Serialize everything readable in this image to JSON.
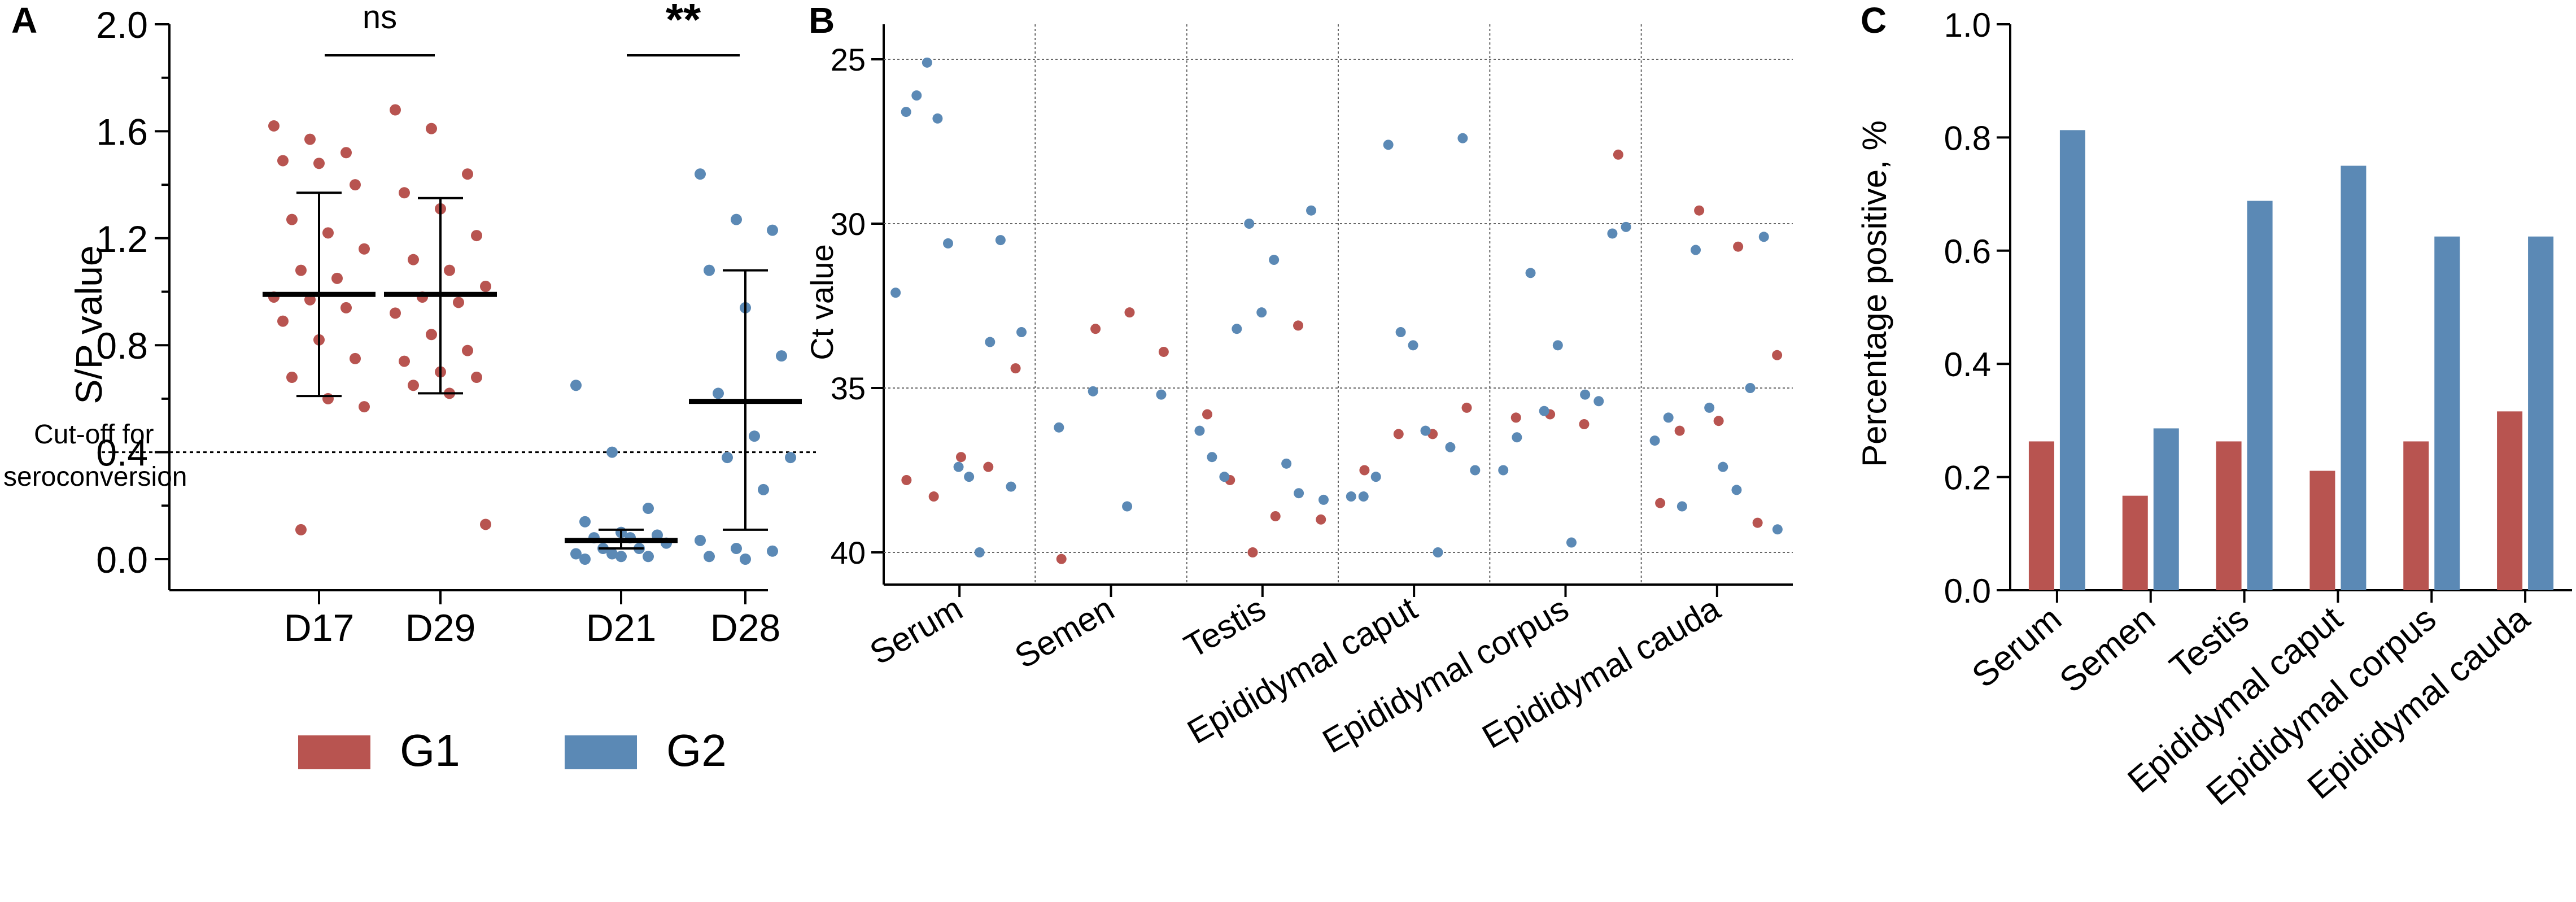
{
  "colors": {
    "g1": "#b85450",
    "g2": "#5b89b5"
  },
  "panels": {
    "a": {
      "letter": "A",
      "ylabel": "S/P value",
      "cutoff_label_line1": "Cut-off for",
      "cutoff_label_line2": "seroconversion",
      "significance": [
        "ns",
        "**"
      ]
    },
    "b": {
      "letter": "B",
      "ylabel": "Ct value"
    },
    "c": {
      "letter": "C",
      "ylabel": "Percentage positive, %"
    }
  },
  "legend": {
    "g1": "G1",
    "g2": "G2"
  },
  "chart_data": [
    {
      "id": "A",
      "type": "scatter",
      "ylabel": "S/P value",
      "ylim": [
        0,
        2.0
      ],
      "yticks": [
        "0.0",
        "0.4",
        "0.8",
        "1.2",
        "1.6",
        "2.0"
      ],
      "ytick_values": [
        0,
        0.4,
        0.8,
        1.2,
        1.6,
        2.0
      ],
      "categories": [
        "D17",
        "D29",
        "D21",
        "D28"
      ],
      "cutoff": 0.4,
      "significance": [
        {
          "from": 0,
          "to": 1,
          "label": "ns"
        },
        {
          "from": 2,
          "to": 3,
          "label": "**"
        }
      ],
      "series": [
        {
          "name": "G1",
          "category": 0,
          "mean": 0.99,
          "sd_low": 0.61,
          "sd_high": 1.37,
          "values": [
            1.62,
            1.57,
            1.52,
            1.49,
            1.48,
            1.4,
            1.27,
            1.22,
            1.16,
            1.08,
            1.05,
            0.98,
            0.97,
            0.94,
            0.89,
            0.82,
            0.75,
            0.68,
            0.6,
            0.57,
            0.11
          ]
        },
        {
          "name": "G1",
          "category": 1,
          "mean": 0.99,
          "sd_low": 0.62,
          "sd_high": 1.35,
          "values": [
            1.68,
            1.61,
            1.44,
            1.37,
            1.31,
            1.21,
            1.12,
            1.08,
            1.02,
            0.98,
            0.96,
            0.92,
            0.84,
            0.78,
            0.74,
            0.7,
            0.68,
            0.65,
            0.62,
            0.13
          ]
        },
        {
          "name": "G2",
          "category": 2,
          "mean": 0.07,
          "sd_low": 0.04,
          "sd_high": 0.11,
          "values": [
            0.65,
            0.4,
            0.19,
            0.14,
            0.1,
            0.09,
            0.08,
            0.08,
            0.06,
            0.04,
            0.04,
            0.02,
            0.02,
            0.01,
            0.0,
            0.01
          ]
        },
        {
          "name": "G2",
          "category": 3,
          "mean": 0.59,
          "sd_low": 0.11,
          "sd_high": 1.08,
          "values": [
            1.44,
            1.27,
            1.23,
            1.08,
            0.94,
            0.76,
            0.62,
            0.46,
            0.38,
            0.38,
            0.26,
            0.07,
            0.04,
            0.03,
            0.01,
            0.0
          ]
        }
      ]
    },
    {
      "id": "B",
      "type": "scatter",
      "ylabel": "Ct value",
      "ylim": [
        25,
        40
      ],
      "y_inverted": true,
      "yticks": [
        "25",
        "30",
        "35",
        "40"
      ],
      "ytick_values": [
        25,
        30,
        35,
        40
      ],
      "categories": [
        "Serum",
        "Semen",
        "Testis",
        "Epididymal caput",
        "Epididymal corpus",
        "Epididymal cauda"
      ],
      "series": [
        {
          "name": "G1",
          "points": [
            [
              0,
              37.8
            ],
            [
              0,
              38.3
            ],
            [
              0,
              37.1
            ],
            [
              0,
              37.4
            ],
            [
              0,
              34.4
            ],
            [
              1,
              40.2
            ],
            [
              1,
              33.2
            ],
            [
              1,
              32.7
            ],
            [
              1,
              33.9
            ],
            [
              2,
              35.8
            ],
            [
              2,
              37.8
            ],
            [
              2,
              40.0
            ],
            [
              2,
              38.9
            ],
            [
              2,
              33.1
            ],
            [
              2,
              39.0
            ],
            [
              3,
              37.5
            ],
            [
              3,
              36.4
            ],
            [
              3,
              36.4
            ],
            [
              3,
              35.6
            ],
            [
              4,
              35.9
            ],
            [
              4,
              35.8
            ],
            [
              4,
              36.1
            ],
            [
              4,
              27.9
            ],
            [
              5,
              38.5
            ],
            [
              5,
              36.3
            ],
            [
              5,
              29.6
            ],
            [
              5,
              36.0
            ],
            [
              5,
              30.7
            ],
            [
              5,
              39.1
            ],
            [
              5,
              34.0
            ]
          ]
        },
        {
          "name": "G2",
          "points": [
            [
              0,
              32.1
            ],
            [
              0,
              26.6
            ],
            [
              0,
              26.1
            ],
            [
              0,
              25.1
            ],
            [
              0,
              26.8
            ],
            [
              0,
              30.6
            ],
            [
              0,
              37.4
            ],
            [
              0,
              37.7
            ],
            [
              0,
              40.0
            ],
            [
              0,
              33.6
            ],
            [
              0,
              30.5
            ],
            [
              0,
              38.0
            ],
            [
              0,
              33.3
            ],
            [
              1,
              36.2
            ],
            [
              1,
              35.1
            ],
            [
              1,
              38.6
            ],
            [
              1,
              35.2
            ],
            [
              2,
              36.3
            ],
            [
              2,
              37.1
            ],
            [
              2,
              37.7
            ],
            [
              2,
              33.2
            ],
            [
              2,
              30.0
            ],
            [
              2,
              32.7
            ],
            [
              2,
              31.1
            ],
            [
              2,
              37.3
            ],
            [
              2,
              38.2
            ],
            [
              2,
              29.6
            ],
            [
              2,
              38.4
            ],
            [
              3,
              38.3
            ],
            [
              3,
              38.3
            ],
            [
              3,
              37.7
            ],
            [
              3,
              27.6
            ],
            [
              3,
              33.3
            ],
            [
              3,
              33.7
            ],
            [
              3,
              36.3
            ],
            [
              3,
              40.0
            ],
            [
              3,
              36.8
            ],
            [
              3,
              27.4
            ],
            [
              3,
              37.5
            ],
            [
              4,
              37.5
            ],
            [
              4,
              36.5
            ],
            [
              4,
              31.5
            ],
            [
              4,
              35.7
            ],
            [
              4,
              33.7
            ],
            [
              4,
              39.7
            ],
            [
              4,
              35.2
            ],
            [
              4,
              35.4
            ],
            [
              4,
              30.3
            ],
            [
              4,
              30.1
            ],
            [
              5,
              36.6
            ],
            [
              5,
              35.9
            ],
            [
              5,
              38.6
            ],
            [
              5,
              30.8
            ],
            [
              5,
              35.6
            ],
            [
              5,
              37.4
            ],
            [
              5,
              38.1
            ],
            [
              5,
              35.0
            ],
            [
              5,
              30.4
            ],
            [
              5,
              39.3
            ]
          ]
        }
      ]
    },
    {
      "id": "C",
      "type": "bar",
      "ylabel": "Percentage positive, %",
      "ylim": [
        0,
        1.0
      ],
      "yticks": [
        "0.0",
        "0.2",
        "0.4",
        "0.6",
        "0.8",
        "1.0"
      ],
      "ytick_values": [
        0,
        0.2,
        0.4,
        0.6,
        0.8,
        1.0
      ],
      "categories": [
        "Serum",
        "Semen",
        "Testis",
        "Epididymal caput",
        "Epididymal corpus",
        "Epididymal cauda"
      ],
      "series": [
        {
          "name": "G1",
          "values": [
            0.263,
            0.167,
            0.263,
            0.211,
            0.263,
            0.316
          ]
        },
        {
          "name": "G2",
          "values": [
            0.813,
            0.286,
            0.688,
            0.75,
            0.625,
            0.625
          ]
        }
      ]
    }
  ]
}
